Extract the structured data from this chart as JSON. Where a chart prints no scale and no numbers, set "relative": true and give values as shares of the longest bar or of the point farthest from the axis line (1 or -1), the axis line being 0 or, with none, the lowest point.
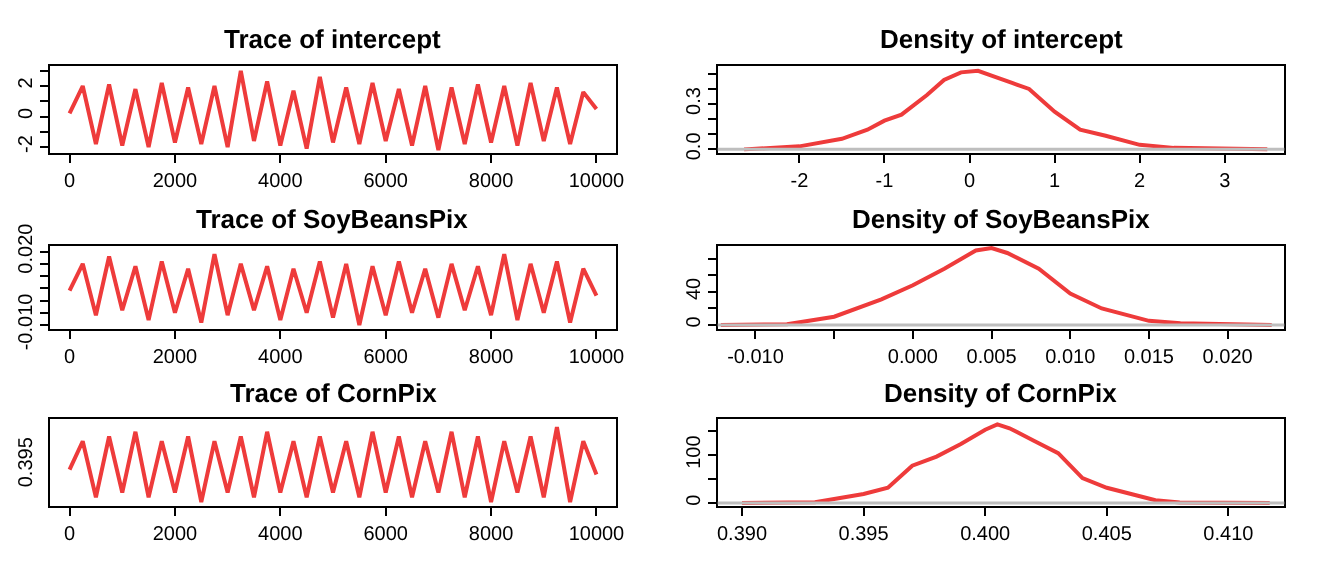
{
  "chart_data": [
    {
      "type": "line",
      "title": "Trace of intercept",
      "x": [
        0,
        250,
        500,
        750,
        1000,
        1250,
        1500,
        1750,
        2000,
        2250,
        2500,
        2750,
        3000,
        3250,
        3500,
        3750,
        4000,
        4250,
        4500,
        4750,
        5000,
        5250,
        5500,
        5750,
        6000,
        6250,
        6500,
        6750,
        7000,
        7250,
        7500,
        7750,
        8000,
        8250,
        8500,
        8750,
        9000,
        9250,
        9500,
        9750,
        10000
      ],
      "series": [
        {
          "color": "#ee3b3b",
          "values": [
            0.2,
            2.0,
            -1.8,
            2.1,
            -1.9,
            1.8,
            -2.0,
            2.2,
            -1.7,
            1.9,
            -1.8,
            2.0,
            -2.0,
            3.0,
            -1.6,
            2.3,
            -1.9,
            1.7,
            -2.1,
            2.6,
            -1.7,
            1.9,
            -1.8,
            2.2,
            -1.6,
            1.8,
            -1.9,
            2.0,
            -2.2,
            1.9,
            -1.8,
            2.1,
            -1.7,
            2.0,
            -1.9,
            2.2,
            -1.6,
            1.9,
            -1.8,
            1.6,
            0.5
          ]
        }
      ],
      "xlim": [
        -377,
        10377
      ],
      "xticks": [
        0,
        2000,
        4000,
        6000,
        8000,
        10000
      ],
      "ylim": [
        -2.4,
        3.29
      ],
      "yticks": [
        -2,
        {
          "value": -1,
          "label": null
        },
        0,
        {
          "value": 1,
          "label": null
        },
        2,
        {
          "value": 3,
          "label": null
        }
      ]
    },
    {
      "type": "line",
      "title": "Density of intercept",
      "x": [
        -2.65,
        -2.0,
        -1.5,
        -1.2,
        -1.0,
        -0.8,
        -0.5,
        -0.3,
        -0.1,
        0.1,
        0.3,
        0.5,
        0.7,
        1.0,
        1.3,
        1.6,
        2.0,
        2.4,
        3.5
      ],
      "series": [
        {
          "color": "#ee3b3b",
          "values": [
            0.0,
            0.02,
            0.07,
            0.13,
            0.19,
            0.23,
            0.36,
            0.46,
            0.51,
            0.52,
            0.48,
            0.44,
            0.4,
            0.25,
            0.13,
            0.09,
            0.03,
            0.01,
            0.0
          ]
        }
      ],
      "xlim": [
        -2.96,
        3.7
      ],
      "xticks": [
        -2,
        -1,
        0,
        1,
        2,
        3
      ],
      "ylim": [
        -0.025,
        0.55
      ],
      "yticks": [
        {
          "value": 0.0,
          "label": "0.0"
        },
        {
          "value": 0.1,
          "label": null
        },
        {
          "value": 0.2,
          "label": null
        },
        {
          "value": 0.3,
          "label": "0.3"
        },
        {
          "value": 0.4,
          "label": null
        },
        {
          "value": 0.5,
          "label": null
        }
      ],
      "ref_lines": [
        {
          "axis": "y",
          "value": 0,
          "color": "#bebebe"
        }
      ]
    },
    {
      "type": "line",
      "title": "Trace of SoyBeansPix",
      "x": [
        0,
        250,
        500,
        750,
        1000,
        1250,
        1500,
        1750,
        2000,
        2250,
        2500,
        2750,
        3000,
        3250,
        3500,
        3750,
        4000,
        4250,
        4500,
        4750,
        5000,
        5250,
        5500,
        5750,
        6000,
        6250,
        6500,
        6750,
        7000,
        7250,
        7500,
        7750,
        8000,
        8250,
        8500,
        8750,
        9000,
        9250,
        9500,
        9750,
        10000
      ],
      "series": [
        {
          "color": "#ee3b3b",
          "values": [
            0.004,
            0.015,
            -0.006,
            0.018,
            -0.004,
            0.014,
            -0.008,
            0.016,
            -0.005,
            0.013,
            -0.009,
            0.019,
            -0.006,
            0.015,
            -0.004,
            0.014,
            -0.008,
            0.013,
            -0.005,
            0.016,
            -0.007,
            0.015,
            -0.01,
            0.014,
            -0.006,
            0.016,
            -0.005,
            0.013,
            -0.007,
            0.015,
            -0.004,
            0.014,
            -0.006,
            0.019,
            -0.008,
            0.015,
            -0.005,
            0.016,
            -0.009,
            0.013,
            0.002
          ]
        }
      ],
      "xlim": [
        -377,
        10377
      ],
      "xticks": [
        0,
        2000,
        4000,
        6000,
        8000,
        10000
      ],
      "ylim": [
        -0.0115,
        0.0225
      ],
      "yticks": [
        {
          "value": -0.01,
          "label": "-0.010"
        },
        {
          "value": -0.005,
          "label": null
        },
        {
          "value": 0.0,
          "label": null
        },
        {
          "value": 0.005,
          "label": null
        },
        {
          "value": 0.01,
          "label": null
        },
        {
          "value": 0.015,
          "label": null
        },
        {
          "value": 0.02,
          "label": "0.020"
        }
      ]
    },
    {
      "type": "line",
      "title": "Density of SoyBeansPix",
      "x": [
        -0.0122,
        -0.008,
        -0.005,
        -0.002,
        0.0,
        0.002,
        0.004,
        0.005,
        0.006,
        0.008,
        0.01,
        0.012,
        0.015,
        0.017,
        0.0228
      ],
      "series": [
        {
          "color": "#ee3b3b",
          "values": [
            0,
            1,
            10,
            31,
            48,
            68,
            90,
            93,
            87,
            68,
            38,
            20,
            5,
            2,
            0
          ]
        }
      ],
      "xlim": [
        -0.0124,
        0.0236
      ],
      "xticks": [
        {
          "value": -0.01,
          "label": "-0.010"
        },
        {
          "value": -0.005,
          "label": null
        },
        {
          "value": 0.0,
          "label": "0.000"
        },
        {
          "value": 0.005,
          "label": "0.005"
        },
        {
          "value": 0.01,
          "label": "0.010"
        },
        {
          "value": 0.015,
          "label": "0.015"
        },
        {
          "value": 0.02,
          "label": "0.020"
        }
      ],
      "ylim": [
        -4.4,
        96
      ],
      "yticks": [
        0,
        {
          "value": 20,
          "label": null
        },
        40,
        {
          "value": 60,
          "label": null
        },
        {
          "value": 80,
          "label": null
        }
      ],
      "ref_lines": [
        {
          "axis": "y",
          "value": 0,
          "color": "#bebebe"
        }
      ]
    },
    {
      "type": "line",
      "title": "Trace of CornPix",
      "x": [
        0,
        250,
        500,
        750,
        1000,
        1250,
        1500,
        1750,
        2000,
        2250,
        2500,
        2750,
        3000,
        3250,
        3500,
        3750,
        4000,
        4250,
        4500,
        4750,
        5000,
        5250,
        5500,
        5750,
        6000,
        6250,
        6500,
        6750,
        7000,
        7250,
        7500,
        7750,
        8000,
        8250,
        8500,
        8750,
        9000,
        9250,
        9500,
        9750,
        10000
      ],
      "series": [
        {
          "color": "#ee3b3b",
          "values": [
            0.46,
            0.82,
            0.11,
            0.88,
            0.17,
            0.94,
            0.11,
            0.82,
            0.17,
            0.88,
            0.05,
            0.82,
            0.17,
            0.88,
            0.11,
            0.94,
            0.17,
            0.82,
            0.11,
            0.88,
            0.17,
            0.82,
            0.11,
            0.94,
            0.17,
            0.88,
            0.11,
            0.82,
            0.17,
            0.94,
            0.11,
            0.88,
            0.05,
            0.82,
            0.17,
            0.88,
            0.11,
            1,
            0.05,
            0.82,
            0.4
          ]
        }
      ],
      "xlim": [
        -377,
        10377
      ],
      "xticks": [
        0,
        2000,
        4000,
        6000,
        8000,
        10000
      ],
      "relative": true,
      "annotations": [
        "0.395"
      ]
    },
    {
      "type": "line",
      "title": "Density of CornPix",
      "x": [
        0.39,
        0.393,
        0.395,
        0.396,
        0.397,
        0.398,
        0.399,
        0.4,
        0.4005,
        0.401,
        0.402,
        0.403,
        0.404,
        0.405,
        0.406,
        0.407,
        0.408,
        0.4117
      ],
      "series": [
        {
          "color": "#ee3b3b",
          "values": [
            0,
            2,
            19,
            32,
            78,
            97,
            123,
            153,
            164,
            156,
            130,
            104,
            52,
            32,
            19,
            6,
            1,
            0
          ]
        }
      ],
      "xlim": [
        0.389,
        0.4123
      ],
      "xticks": [
        {
          "value": 0.39,
          "label": "0.390"
        },
        {
          "value": 0.395,
          "label": "0.395"
        },
        {
          "value": 0.4,
          "label": "0.400"
        },
        {
          "value": 0.405,
          "label": "0.405"
        },
        {
          "value": 0.41,
          "label": "0.410"
        }
      ],
      "ylim": [
        -6,
        175
      ],
      "yticks": [
        0,
        {
          "value": 50,
          "label": null
        },
        100,
        {
          "value": 150,
          "label": null
        }
      ],
      "ref_lines": [
        {
          "axis": "y",
          "value": 0,
          "color": "#bebebe"
        }
      ]
    }
  ]
}
